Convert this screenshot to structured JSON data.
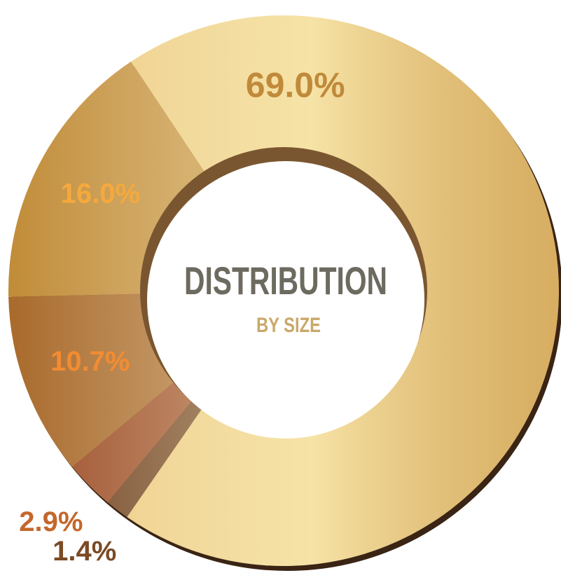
{
  "chart_data": {
    "type": "donut",
    "title": "DISTRIBUTION",
    "subtitle": "BY SIZE",
    "categories": [
      null,
      null,
      null,
      null,
      null
    ],
    "values": [
      69.0,
      1.4,
      2.9,
      10.7,
      16.0
    ],
    "value_labels": [
      "69.0%",
      "1.4%",
      "2.9%",
      "10.7%",
      "16.0%"
    ],
    "colors": [
      "#ecc97c",
      "#6e3f1c",
      "#9c4b24",
      "#a96a2b",
      "#c18c38"
    ],
    "label_colors": [
      "#c08a3a",
      "#7a4a24",
      "#c4672c",
      "#f28c32",
      "#f5a93c"
    ]
  }
}
